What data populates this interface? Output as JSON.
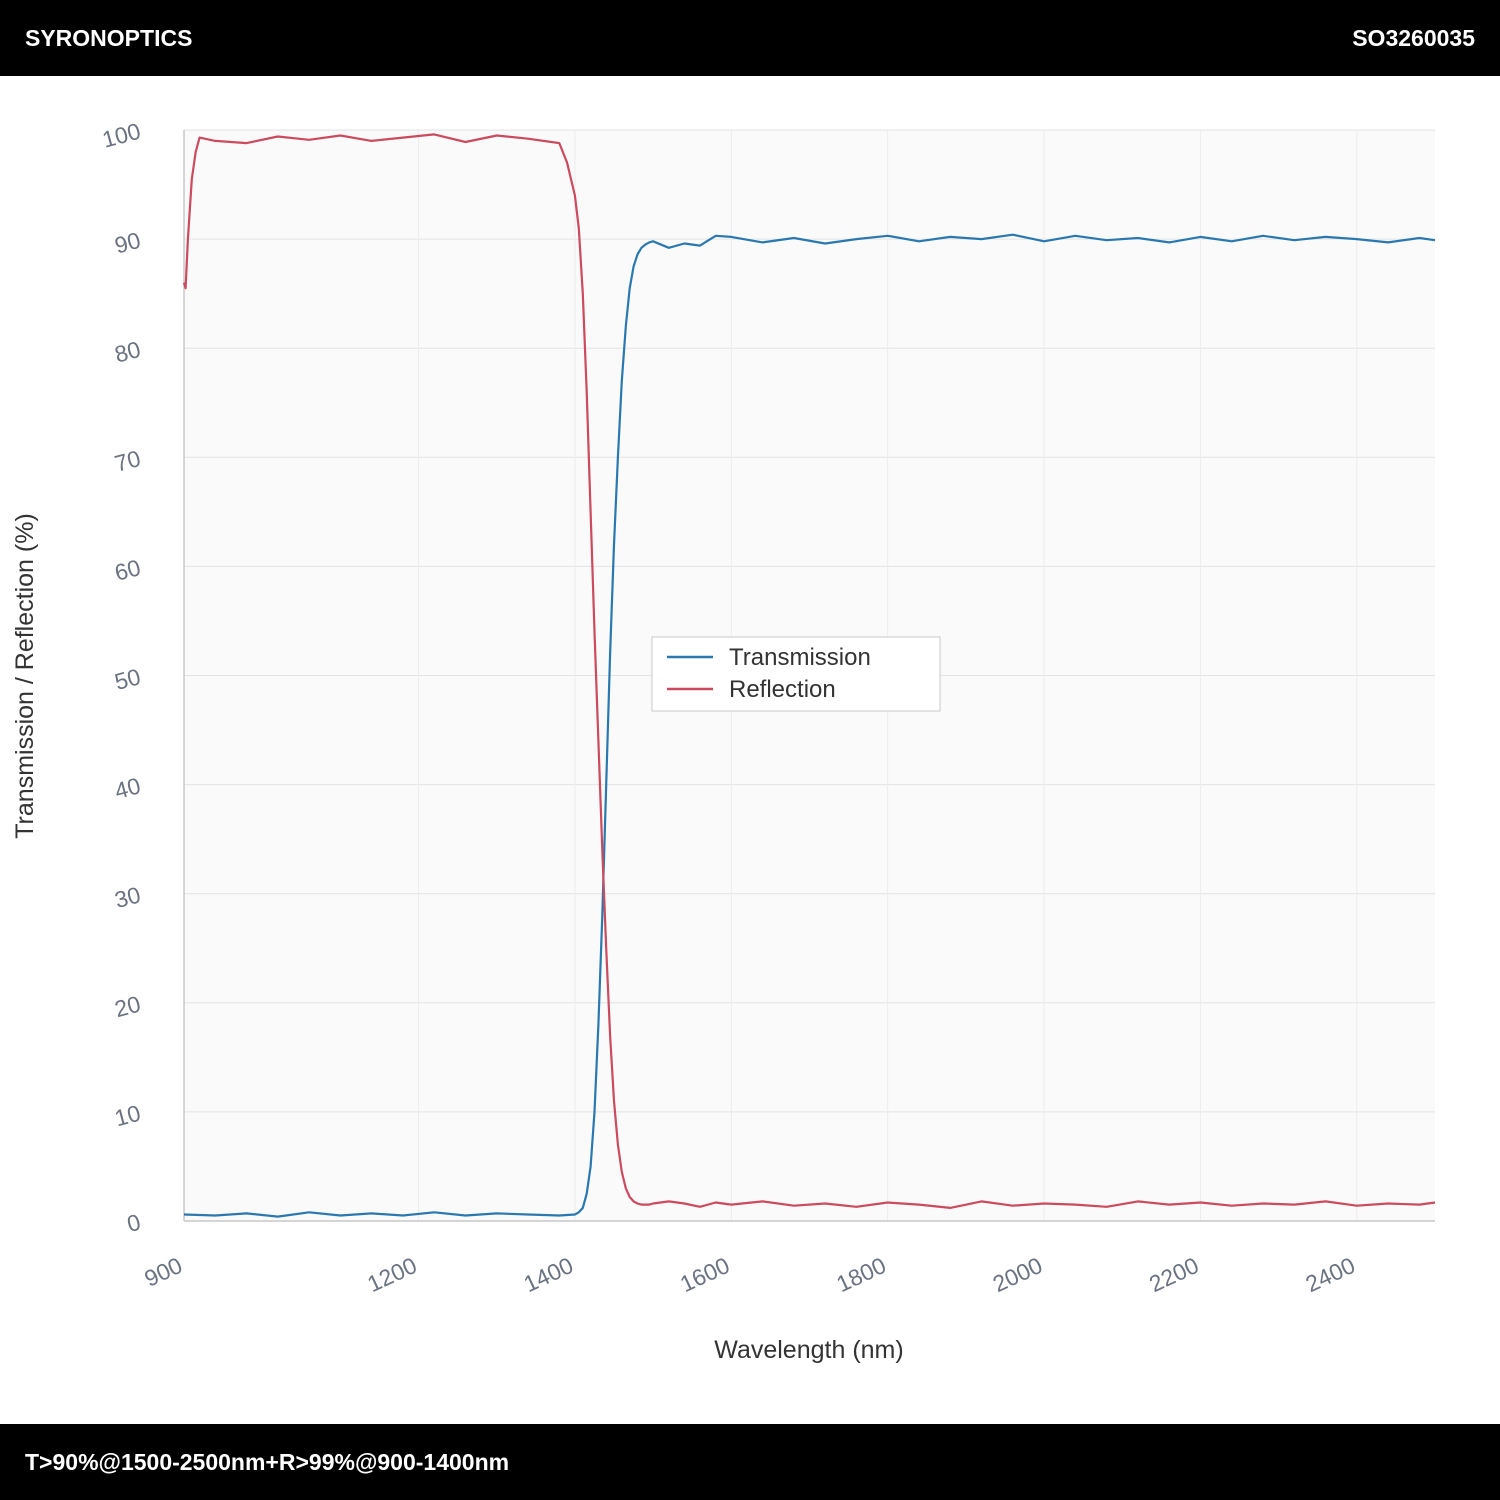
{
  "header": {
    "brand": "SYRONOPTICS",
    "part_number": "SO3260035"
  },
  "footer": {
    "spec": "T>90%@1500-2500nm+R>99%@900-1400nm"
  },
  "chart_data": {
    "type": "line",
    "title": "",
    "xlabel": "Wavelength (nm)",
    "ylabel": "Transmission / Reflection (%)",
    "xlim": [
      900,
      2500
    ],
    "ylim": [
      0,
      100
    ],
    "x_ticks": [
      900,
      1200,
      1400,
      1600,
      1800,
      2000,
      2200,
      2400
    ],
    "y_ticks": [
      0,
      10,
      20,
      30,
      40,
      50,
      60,
      70,
      80,
      90,
      100
    ],
    "grid": true,
    "legend_position": "center",
    "series": [
      {
        "name": "Transmission",
        "color": "#2a78b0",
        "x": [
          900,
          940,
          980,
          1020,
          1060,
          1100,
          1140,
          1180,
          1220,
          1260,
          1300,
          1340,
          1380,
          1400,
          1405,
          1410,
          1415,
          1420,
          1425,
          1430,
          1435,
          1440,
          1445,
          1450,
          1455,
          1460,
          1465,
          1470,
          1475,
          1480,
          1485,
          1490,
          1495,
          1500,
          1520,
          1540,
          1560,
          1580,
          1600,
          1640,
          1680,
          1720,
          1760,
          1800,
          1840,
          1880,
          1920,
          1960,
          2000,
          2040,
          2080,
          2120,
          2160,
          2200,
          2240,
          2280,
          2320,
          2360,
          2400,
          2440,
          2480,
          2500
        ],
        "y": [
          0.6,
          0.5,
          0.7,
          0.4,
          0.8,
          0.5,
          0.7,
          0.5,
          0.8,
          0.5,
          0.7,
          0.6,
          0.5,
          0.6,
          0.8,
          1.2,
          2.5,
          5.0,
          10.0,
          18.0,
          28.0,
          40.0,
          52.0,
          62.0,
          70.0,
          77.0,
          82.0,
          85.5,
          87.5,
          88.6,
          89.2,
          89.5,
          89.7,
          89.8,
          89.2,
          89.6,
          89.4,
          90.3,
          90.2,
          89.7,
          90.1,
          89.6,
          90.0,
          90.3,
          89.8,
          90.2,
          90.0,
          90.4,
          89.8,
          90.3,
          89.9,
          90.1,
          89.7,
          90.2,
          89.8,
          90.3,
          89.9,
          90.2,
          90.0,
          89.7,
          90.1,
          89.9
        ]
      },
      {
        "name": "Reflection",
        "color": "#cc4a5e",
        "x": [
          900,
          902,
          905,
          910,
          915,
          920,
          940,
          980,
          1020,
          1060,
          1100,
          1140,
          1180,
          1220,
          1260,
          1300,
          1340,
          1380,
          1390,
          1400,
          1405,
          1410,
          1415,
          1420,
          1425,
          1430,
          1435,
          1440,
          1445,
          1450,
          1455,
          1460,
          1465,
          1470,
          1475,
          1480,
          1485,
          1490,
          1495,
          1500,
          1520,
          1540,
          1560,
          1580,
          1600,
          1640,
          1680,
          1720,
          1760,
          1800,
          1840,
          1880,
          1920,
          1960,
          2000,
          2040,
          2080,
          2120,
          2160,
          2200,
          2240,
          2280,
          2320,
          2360,
          2400,
          2440,
          2480,
          2500
        ],
        "y": [
          86.0,
          85.5,
          90.0,
          95.5,
          98.0,
          99.3,
          99.0,
          98.8,
          99.4,
          99.1,
          99.5,
          99.0,
          99.3,
          99.6,
          98.9,
          99.5,
          99.2,
          98.8,
          97.0,
          94.0,
          91.0,
          85.0,
          76.0,
          65.0,
          54.0,
          44.0,
          34.0,
          25.0,
          17.0,
          11.0,
          7.0,
          4.5,
          3.0,
          2.2,
          1.8,
          1.6,
          1.5,
          1.5,
          1.5,
          1.6,
          1.8,
          1.6,
          1.3,
          1.7,
          1.5,
          1.8,
          1.4,
          1.6,
          1.3,
          1.7,
          1.5,
          1.2,
          1.8,
          1.4,
          1.6,
          1.5,
          1.3,
          1.8,
          1.5,
          1.7,
          1.4,
          1.6,
          1.5,
          1.8,
          1.4,
          1.6,
          1.5,
          1.7
        ]
      }
    ]
  }
}
